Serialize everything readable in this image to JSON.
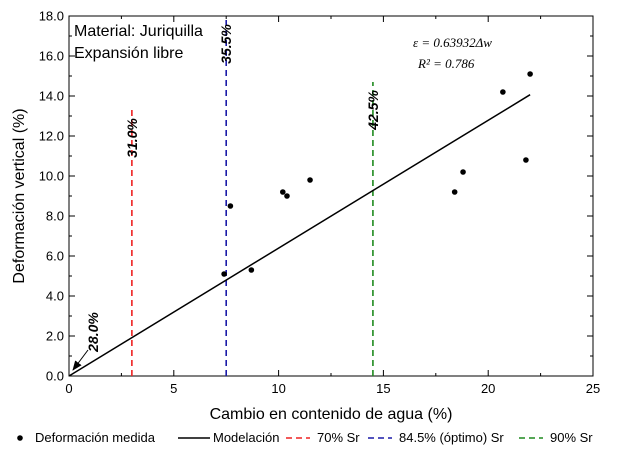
{
  "chart_data": {
    "type": "scatter",
    "xlabel": "Cambio en contenido de agua (%)",
    "ylabel": "Deformación vertical (%)",
    "xlim": [
      0,
      25
    ],
    "ylim": [
      0,
      18
    ],
    "x_ticks": [
      "0",
      "5",
      "10",
      "15",
      "20",
      "25"
    ],
    "y_ticks": [
      "0.0",
      "2.0",
      "4.0",
      "6.0",
      "8.0",
      "10.0",
      "12.0",
      "14.0",
      "16.0",
      "18.0"
    ],
    "info_box": {
      "line1": "Material: Juriquilla",
      "line2": "Expansión libre"
    },
    "equation": {
      "eps": "ε = 0.63932Δw",
      "r2": "R² = 0.786"
    },
    "series": [
      {
        "name": "Deformación medida",
        "kind": "points",
        "color": "#000000",
        "points": [
          [
            7.4,
            5.1
          ],
          [
            7.7,
            8.5
          ],
          [
            8.7,
            5.3
          ],
          [
            10.2,
            9.2
          ],
          [
            10.4,
            9.0
          ],
          [
            11.5,
            9.8
          ],
          [
            18.4,
            9.2
          ],
          [
            18.8,
            10.2
          ],
          [
            20.7,
            14.2
          ],
          [
            21.8,
            10.8
          ],
          [
            22.0,
            15.1
          ]
        ]
      },
      {
        "name": "Modelación",
        "kind": "line",
        "color": "#000000",
        "slope": 0.63932,
        "x_range": [
          0,
          22
        ]
      },
      {
        "name": "70% Sr",
        "kind": "vline",
        "color": "#ee2222",
        "x": 3.0,
        "y_range": [
          0,
          13.3
        ],
        "label": "31.0%"
      },
      {
        "name": "84.5% (óptimo) Sr",
        "kind": "vline",
        "color": "#1a1aa8",
        "x": 7.5,
        "y_range": [
          0,
          18
        ],
        "label": "35.5%"
      },
      {
        "name": "90% Sr",
        "kind": "vline",
        "color": "#1e8a1e",
        "x": 14.5,
        "y_range": [
          0,
          14.7
        ],
        "label": "42.5%"
      }
    ],
    "annotation": {
      "text": "28.0%",
      "x": 0,
      "y": 0
    },
    "legend_position": "bottom",
    "grid": false
  }
}
